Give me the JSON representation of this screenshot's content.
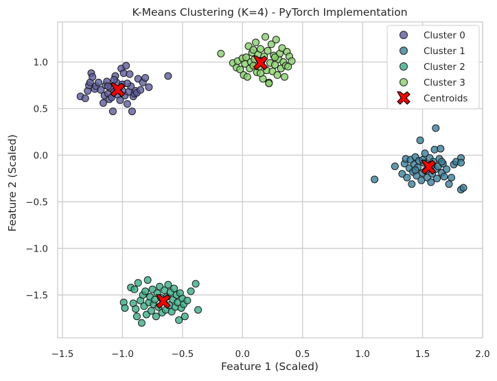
{
  "chart_data": {
    "type": "scatter",
    "title": "K-Means Clustering (K=4) - PyTorch Implementation",
    "xlabel": "Feature 1 (Scaled)",
    "ylabel": "Feature 2 (Scaled)",
    "xlim": [
      -1.54,
      2.0
    ],
    "ylim": [
      -1.96,
      1.43
    ],
    "xticks": [
      -1.5,
      -1.0,
      -0.5,
      0.0,
      0.5,
      1.0,
      1.5,
      2.0
    ],
    "xtick_labels": [
      "−1.5",
      "−1.0",
      "−0.5",
      "0.0",
      "0.5",
      "1.0",
      "1.5",
      "2.0"
    ],
    "yticks": [
      -1.5,
      -1.0,
      -0.5,
      0.0,
      0.5,
      1.0
    ],
    "ytick_labels": [
      "−1.5",
      "−1.0",
      "−0.5",
      "0.0",
      "0.5",
      "1.0"
    ],
    "grid": true,
    "legend_position": "top-right",
    "series": [
      {
        "name": "Cluster 0",
        "color": "#5d5c9f",
        "points": [
          [
            -1.35,
            0.63
          ],
          [
            -1.31,
            0.61
          ],
          [
            -1.29,
            0.69
          ],
          [
            -1.28,
            0.75
          ],
          [
            -1.27,
            0.78
          ],
          [
            -1.26,
            0.88
          ],
          [
            -1.25,
            0.84
          ],
          [
            -1.23,
            0.71
          ],
          [
            -1.22,
            0.74
          ],
          [
            -1.2,
            0.78
          ],
          [
            -1.18,
            0.7
          ],
          [
            -1.16,
            0.56
          ],
          [
            -1.15,
            0.64
          ],
          [
            -1.14,
            0.75
          ],
          [
            -1.13,
            0.79
          ],
          [
            -1.12,
            0.66
          ],
          [
            -1.11,
            0.6
          ],
          [
            -1.1,
            0.72
          ],
          [
            -1.09,
            0.62
          ],
          [
            -1.08,
            0.47
          ],
          [
            -1.07,
            0.68
          ],
          [
            -1.06,
            0.85
          ],
          [
            -1.05,
            0.78
          ],
          [
            -1.04,
            0.65
          ],
          [
            -1.03,
            0.71
          ],
          [
            -1.02,
            0.59
          ],
          [
            -1.01,
            0.93
          ],
          [
            -1.0,
            0.76
          ],
          [
            -0.99,
            0.88
          ],
          [
            -0.98,
            0.64
          ],
          [
            -0.97,
            0.96
          ],
          [
            -0.96,
            0.55
          ],
          [
            -0.95,
            0.68
          ],
          [
            -0.94,
            0.87
          ],
          [
            -0.93,
            0.74
          ],
          [
            -0.92,
            0.47
          ],
          [
            -0.91,
            0.63
          ],
          [
            -0.9,
            0.66
          ],
          [
            -0.89,
            0.69
          ],
          [
            -0.88,
            0.67
          ],
          [
            -0.87,
            0.82
          ],
          [
            -0.85,
            0.7
          ],
          [
            -0.83,
            0.78
          ],
          [
            -0.81,
            0.83
          ],
          [
            -0.78,
            0.73
          ],
          [
            -0.62,
            0.85
          ],
          [
            -1.12,
            0.74
          ],
          [
            -1.07,
            0.81
          ],
          [
            -1.0,
            0.69
          ],
          [
            -0.96,
            0.77
          ]
        ]
      },
      {
        "name": "Cluster 1",
        "color": "#3a7f9b",
        "points": [
          [
            1.1,
            -0.26
          ],
          [
            1.27,
            -0.12
          ],
          [
            1.33,
            -0.2
          ],
          [
            1.35,
            -0.09
          ],
          [
            1.36,
            -0.04
          ],
          [
            1.37,
            -0.24
          ],
          [
            1.39,
            -0.14
          ],
          [
            1.4,
            -0.05
          ],
          [
            1.41,
            -0.31
          ],
          [
            1.42,
            -0.18
          ],
          [
            1.43,
            -0.1
          ],
          [
            1.44,
            -0.02
          ],
          [
            1.45,
            -0.22
          ],
          [
            1.46,
            -0.13
          ],
          [
            1.47,
            -0.06
          ],
          [
            1.48,
            0.16
          ],
          [
            1.49,
            -0.27
          ],
          [
            1.5,
            -0.19
          ],
          [
            1.51,
            -0.08
          ],
          [
            1.52,
            0.02
          ],
          [
            1.53,
            -0.16
          ],
          [
            1.54,
            -0.24
          ],
          [
            1.55,
            -0.11
          ],
          [
            1.56,
            -0.03
          ],
          [
            1.57,
            -0.29
          ],
          [
            1.58,
            -0.2
          ],
          [
            1.59,
            -0.07
          ],
          [
            1.6,
            0.06
          ],
          [
            1.61,
            -0.15
          ],
          [
            1.62,
            -0.25
          ],
          [
            1.63,
            -0.12
          ],
          [
            1.64,
            -0.04
          ],
          [
            1.65,
            0.07
          ],
          [
            1.66,
            -0.19
          ],
          [
            1.67,
            -0.09
          ],
          [
            1.68,
            -0.23
          ],
          [
            1.7,
            -0.15
          ],
          [
            1.72,
            -0.31
          ],
          [
            1.74,
            -0.24
          ],
          [
            1.76,
            -0.1
          ],
          [
            1.78,
            -0.07
          ],
          [
            1.82,
            -0.03
          ],
          [
            1.82,
            -0.37
          ],
          [
            1.84,
            -0.35
          ],
          [
            1.82,
            -0.08
          ],
          [
            1.61,
            0.29
          ],
          [
            1.5,
            -0.05
          ],
          [
            1.44,
            -0.16
          ],
          [
            1.57,
            -0.12
          ],
          [
            1.66,
            -0.07
          ]
        ]
      },
      {
        "name": "Cluster 2",
        "color": "#37ad84",
        "points": [
          [
            -0.99,
            -1.58
          ],
          [
            -0.98,
            -1.64
          ],
          [
            -0.93,
            -1.42
          ],
          [
            -0.91,
            -1.59
          ],
          [
            -0.9,
            -1.44
          ],
          [
            -0.89,
            -1.65
          ],
          [
            -0.88,
            -1.73
          ],
          [
            -0.87,
            -1.37
          ],
          [
            -0.85,
            -1.56
          ],
          [
            -0.84,
            -1.8
          ],
          [
            -0.83,
            -1.5
          ],
          [
            -0.82,
            -1.62
          ],
          [
            -0.81,
            -1.46
          ],
          [
            -0.8,
            -1.71
          ],
          [
            -0.79,
            -1.34
          ],
          [
            -0.78,
            -1.58
          ],
          [
            -0.77,
            -1.52
          ],
          [
            -0.76,
            -1.67
          ],
          [
            -0.75,
            -1.44
          ],
          [
            -0.74,
            -1.6
          ],
          [
            -0.73,
            -1.55
          ],
          [
            -0.72,
            -1.73
          ],
          [
            -0.71,
            -1.48
          ],
          [
            -0.7,
            -1.63
          ],
          [
            -0.69,
            -1.41
          ],
          [
            -0.68,
            -1.53
          ],
          [
            -0.67,
            -1.69
          ],
          [
            -0.66,
            -1.57
          ],
          [
            -0.65,
            -1.45
          ],
          [
            -0.64,
            -1.66
          ],
          [
            -0.63,
            -1.52
          ],
          [
            -0.62,
            -1.39
          ],
          [
            -0.61,
            -1.61
          ],
          [
            -0.6,
            -1.47
          ],
          [
            -0.59,
            -1.68
          ],
          [
            -0.58,
            -1.55
          ],
          [
            -0.57,
            -1.43
          ],
          [
            -0.56,
            -1.63
          ],
          [
            -0.55,
            -1.5
          ],
          [
            -0.54,
            -1.58
          ],
          [
            -0.53,
            -1.77
          ],
          [
            -0.52,
            -1.48
          ],
          [
            -0.51,
            -1.64
          ],
          [
            -0.5,
            -1.54
          ],
          [
            -0.49,
            -1.6
          ],
          [
            -0.48,
            -1.73
          ],
          [
            -0.46,
            -1.56
          ],
          [
            -0.43,
            -1.46
          ],
          [
            -0.39,
            -1.38
          ],
          [
            -0.37,
            -1.66
          ]
        ]
      },
      {
        "name": "Cluster 3",
        "color": "#86cf6a",
        "points": [
          [
            -0.18,
            1.09
          ],
          [
            -0.08,
            0.99
          ],
          [
            -0.05,
            0.94
          ],
          [
            -0.04,
            1.01
          ],
          [
            -0.02,
            0.92
          ],
          [
            0.0,
            1.04
          ],
          [
            0.01,
            0.86
          ],
          [
            0.02,
            0.98
          ],
          [
            0.03,
            1.05
          ],
          [
            0.04,
            0.84
          ],
          [
            0.05,
            1.17
          ],
          [
            0.06,
            0.93
          ],
          [
            0.07,
            1.0
          ],
          [
            0.08,
            1.1
          ],
          [
            0.09,
            0.96
          ],
          [
            0.1,
            1.03
          ],
          [
            0.11,
            1.21
          ],
          [
            0.12,
            0.89
          ],
          [
            0.13,
            1.08
          ],
          [
            0.14,
            0.95
          ],
          [
            0.15,
            1.14
          ],
          [
            0.16,
            1.01
          ],
          [
            0.17,
            0.82
          ],
          [
            0.18,
            1.06
          ],
          [
            0.19,
            1.27
          ],
          [
            0.2,
            0.91
          ],
          [
            0.21,
            1.12
          ],
          [
            0.22,
            0.78
          ],
          [
            0.23,
            0.99
          ],
          [
            0.24,
            1.19
          ],
          [
            0.25,
            0.9
          ],
          [
            0.26,
            1.07
          ],
          [
            0.27,
            0.97
          ],
          [
            0.28,
            1.24
          ],
          [
            0.29,
            0.86
          ],
          [
            0.3,
            1.03
          ],
          [
            0.31,
            1.09
          ],
          [
            0.32,
            0.93
          ],
          [
            0.33,
            1.15
          ],
          [
            0.34,
            1.0
          ],
          [
            0.35,
            0.84
          ],
          [
            0.36,
            0.96
          ],
          [
            0.37,
            1.11
          ],
          [
            0.38,
            0.95
          ],
          [
            0.39,
            1.06
          ],
          [
            0.41,
            1.01
          ],
          [
            0.22,
            0.77
          ],
          [
            0.15,
            0.88
          ],
          [
            0.09,
            1.13
          ],
          [
            0.27,
            1.05
          ]
        ]
      }
    ],
    "centroids": {
      "name": "Centroids",
      "color": "#ff0000",
      "points": [
        [
          -1.04,
          0.7
        ],
        [
          1.55,
          -0.13
        ],
        [
          -0.66,
          -1.57
        ],
        [
          0.15,
          0.99
        ]
      ]
    }
  }
}
